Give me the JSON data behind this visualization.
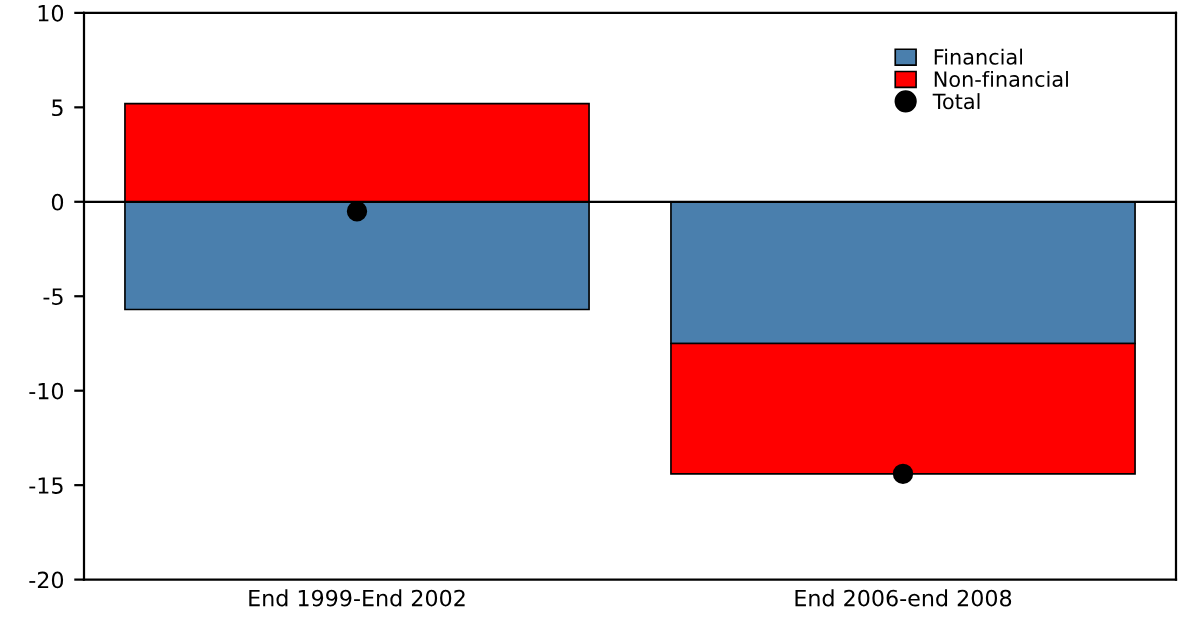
{
  "chart_data": {
    "type": "bar",
    "stacked": true,
    "categories": [
      "End 1999-End 2002",
      "End 2006-end 2008"
    ],
    "series": [
      {
        "name": "Financial",
        "color": "#4a7fad",
        "values": [
          -5.7,
          -7.5
        ]
      },
      {
        "name": "Non-financial",
        "color": "#ff0000",
        "values": [
          5.2,
          -6.9
        ]
      },
      {
        "name": "Total",
        "type": "scatter",
        "color": "#000000",
        "values": [
          -0.5,
          -14.4
        ]
      }
    ],
    "ylim": [
      -20,
      10
    ],
    "yticks": [
      -20,
      -15,
      -10,
      -5,
      0,
      5,
      10
    ],
    "ref_lines": [
      {
        "axis": "y",
        "value": 0,
        "color": "#000000"
      }
    ],
    "legend": "top right",
    "marker": "circle",
    "grid": false
  }
}
